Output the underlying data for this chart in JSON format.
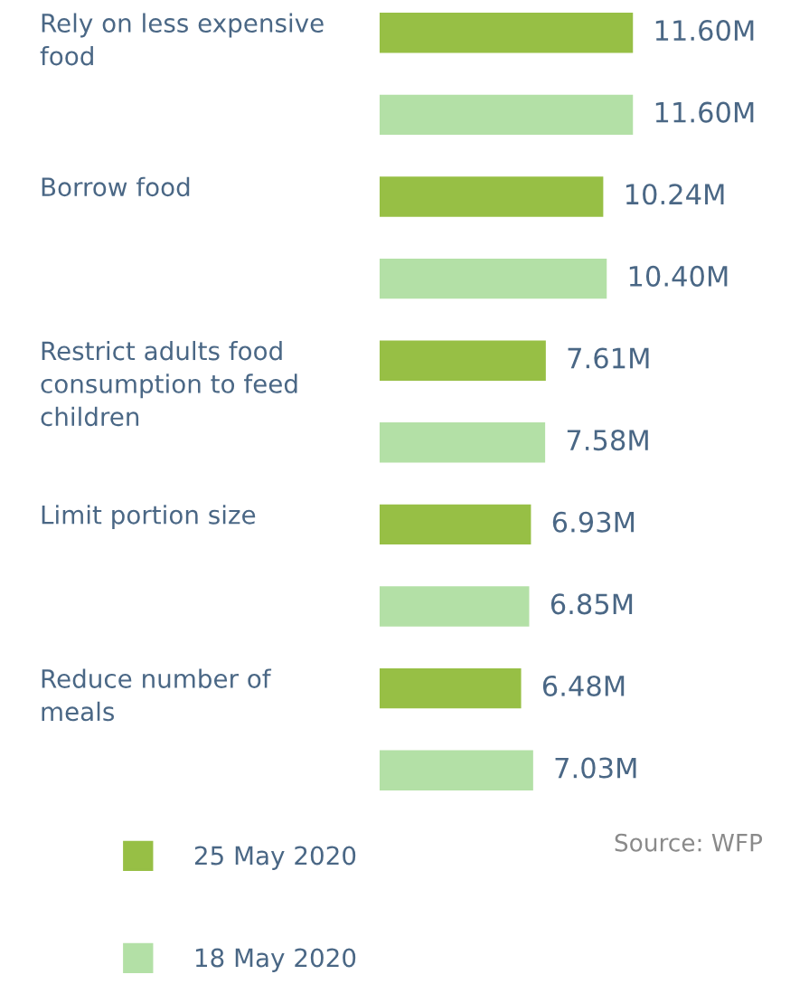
{
  "chart_data": {
    "type": "bar",
    "orientation": "horizontal",
    "categories": [
      "Rely on less expensive\nfood",
      "Borrow food",
      "Restrict adults food\nconsumption to feed\nchildren",
      "Limit portion size",
      "Reduce number of\nmeals"
    ],
    "series": [
      {
        "name": "25 May 2020",
        "color": "#97bf45",
        "values": [
          11.6,
          10.24,
          7.61,
          6.93,
          6.48
        ],
        "value_labels": [
          "11.60M",
          "10.24M",
          "7.61M",
          "6.93M",
          "6.48M"
        ]
      },
      {
        "name": "18 May 2020",
        "color": "#b3e0a6",
        "values": [
          11.6,
          10.4,
          7.58,
          6.85,
          7.03
        ],
        "value_labels": [
          "11.60M",
          "10.40M",
          "7.58M",
          "6.85M",
          "7.03M"
        ]
      }
    ],
    "legend": "bottom left",
    "annotations": [
      "Source: WFP"
    ]
  }
}
